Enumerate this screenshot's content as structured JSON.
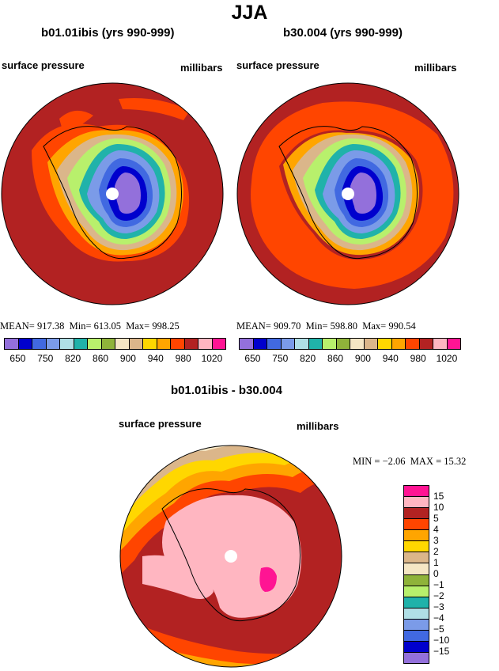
{
  "figure": {
    "title": "JJA"
  },
  "panel_left": {
    "title": "b01.01ibis (yrs 990-999)",
    "variable": "surface pressure",
    "units": "millibars",
    "mean_label": "MEAN=",
    "mean": "917.38",
    "min_label": "Min=",
    "min": "613.05",
    "max_label": "Max=",
    "max": "998.25"
  },
  "panel_right": {
    "title": "b30.004 (yrs 990-999)",
    "variable": "surface pressure",
    "units": "millibars",
    "mean_label": "MEAN=",
    "mean": "909.70",
    "min_label": "Min=",
    "min": "598.80",
    "max_label": "Max=",
    "max": "990.54"
  },
  "panel_diff": {
    "title": "b01.01ibis - b30.004",
    "variable": "surface pressure",
    "units": "millibars",
    "min_label": "MIN =",
    "min": "−2.06",
    "max_label": "MAX =",
    "max": "15.32"
  },
  "colorbar_main": {
    "colors": [
      "#9370db",
      "#0000cd",
      "#4169e1",
      "#7b9be8",
      "#b0dfe6",
      "#20b2aa",
      "#b8f06c",
      "#8fb33a",
      "#f5e6c4",
      "#dbb68a",
      "#ffd700",
      "#ffa500",
      "#ff4500",
      "#b22222",
      "#ffb6c1",
      "#ff1493"
    ],
    "labels": [
      "650",
      "750",
      "820",
      "860",
      "900",
      "940",
      "980",
      "1020"
    ]
  },
  "colorbar_diff": {
    "colors": [
      "#ff1493",
      "#ffb6c1",
      "#b22222",
      "#ff4500",
      "#ffa500",
      "#ffd700",
      "#dbb68a",
      "#f5e6c4",
      "#8fb33a",
      "#b8f06c",
      "#20b2aa",
      "#b0dfe6",
      "#7b9be8",
      "#4169e1",
      "#0000cd",
      "#9370db"
    ],
    "labels": [
      "15",
      "10",
      "5",
      "4",
      "3",
      "2",
      "1",
      "0",
      "−1",
      "−2",
      "−3",
      "−4",
      "−5",
      "−10",
      "−15"
    ]
  }
}
